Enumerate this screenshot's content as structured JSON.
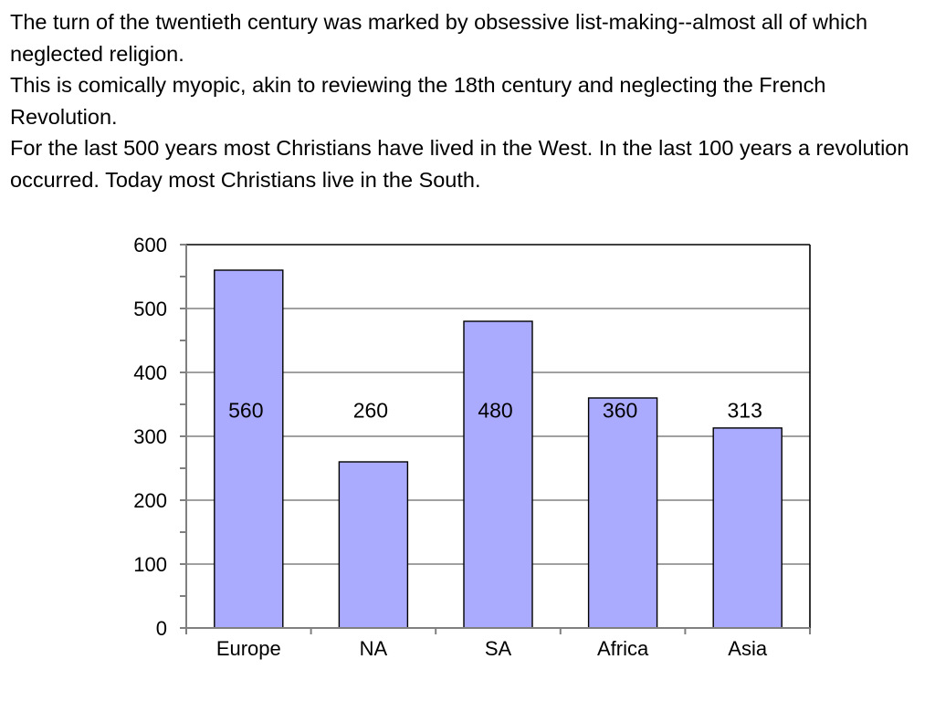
{
  "text": {
    "paragraphs": [
      "The turn of the twentieth century was marked by obsessive list-making--almost all of which neglected religion.",
      "This is comically myopic, akin to reviewing the 18th century and neglecting the French Revolution.",
      "For the last 500 years most Christians have lived in the West. In the last 100 years a revolution occurred.  Today most Christians live in the South."
    ]
  },
  "chart_data": {
    "type": "bar",
    "title": "",
    "xlabel": "",
    "ylabel": "",
    "categories": [
      "Europe",
      "NA",
      "SA",
      "Africa",
      "Asia"
    ],
    "values": [
      560,
      260,
      480,
      360,
      313
    ],
    "data_labels": [
      "560",
      "260",
      "480",
      "360",
      "313"
    ],
    "ylim": [
      0,
      600
    ],
    "yticks": [
      0,
      100,
      200,
      300,
      400,
      500,
      600
    ],
    "ytick_labels": [
      "0",
      "100",
      "200",
      "300",
      "400",
      "500",
      "600"
    ],
    "grid": true,
    "legend": "none",
    "colors": {
      "bar_fill": "#aaaaff",
      "bar_stroke": "#000000",
      "gridline": "#808080",
      "axis": "#808080",
      "frame": "#000000"
    }
  }
}
